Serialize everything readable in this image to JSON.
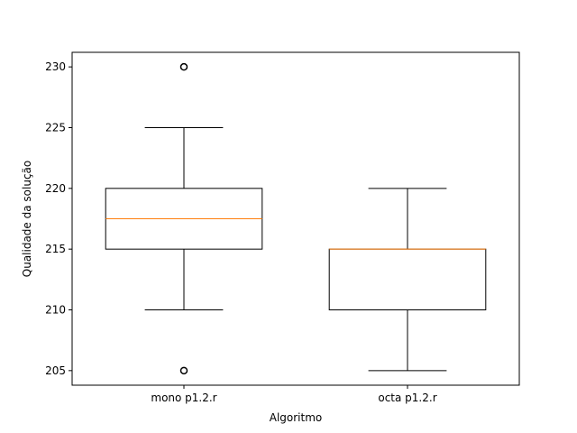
{
  "chart_data": {
    "type": "boxplot",
    "title": "",
    "xlabel": "Algoritmo",
    "ylabel": "Qualidade da solução",
    "ylim": [
      203.8,
      231.2
    ],
    "yticks": [
      205,
      210,
      215,
      220,
      225,
      230
    ],
    "grid": false,
    "categories": [
      "mono p1.2.r",
      "octa p1.2.r"
    ],
    "boxes": [
      {
        "label": "mono p1.2.r",
        "whisker_low": 210,
        "q1": 215,
        "median": 217.5,
        "q3": 220,
        "whisker_high": 225,
        "outliers": [
          205,
          230
        ]
      },
      {
        "label": "octa p1.2.r",
        "whisker_low": 205,
        "q1": 210,
        "median": 215,
        "q3": 215,
        "whisker_high": 220,
        "outliers": []
      }
    ],
    "colors": {
      "box": "#000000",
      "median": "#ff7f0e",
      "axes": "#000000"
    }
  }
}
